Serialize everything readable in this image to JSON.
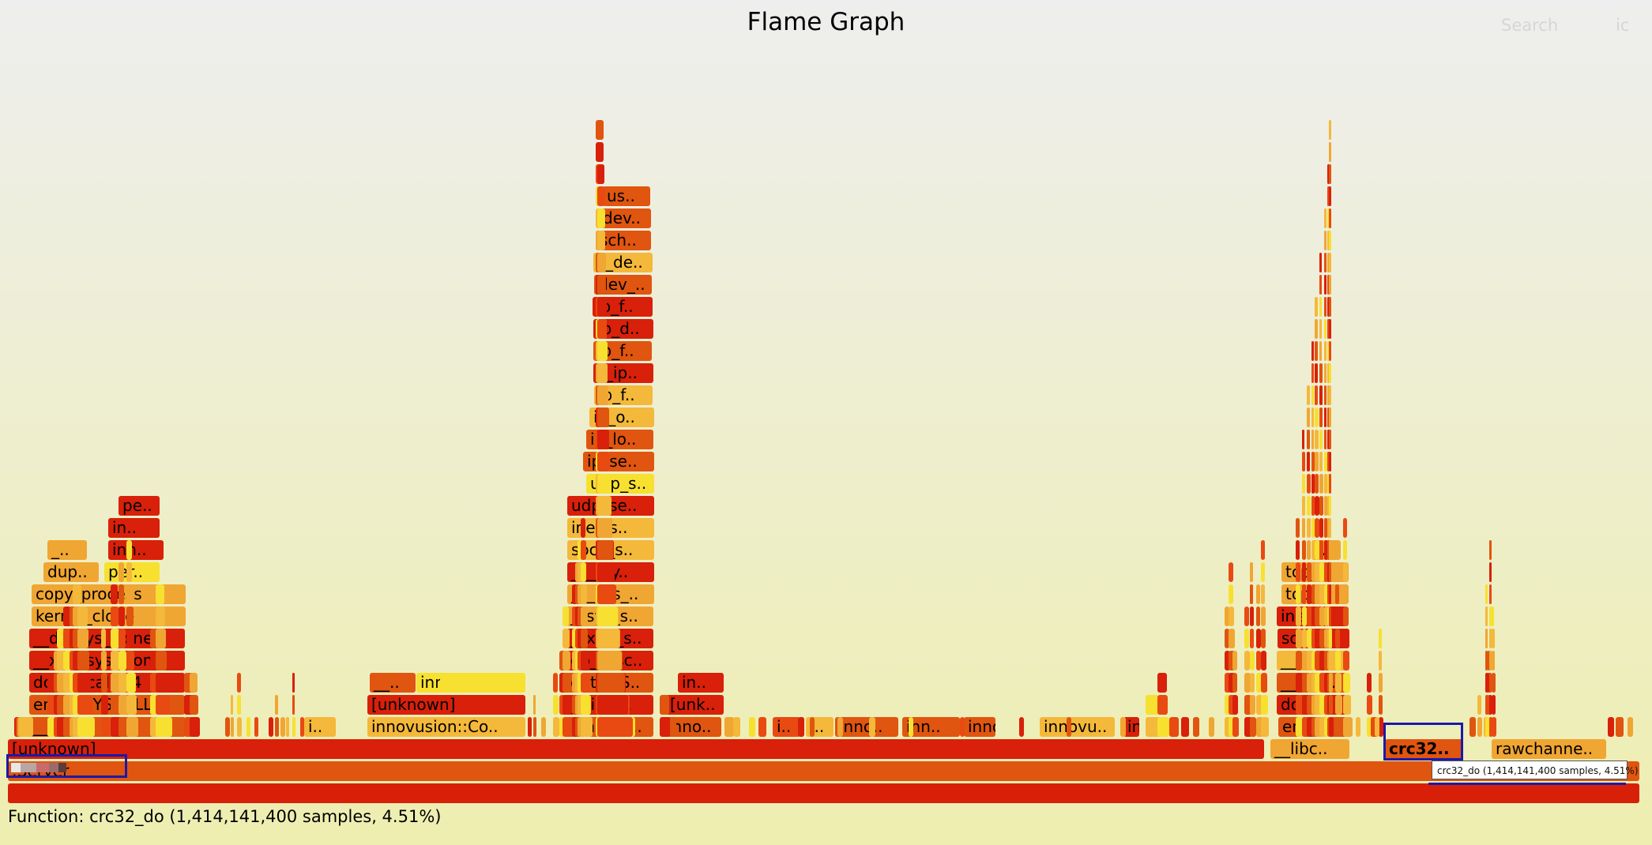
{
  "title": "Flame Graph",
  "controls": {
    "search_label": "Search",
    "ic_label": "ic"
  },
  "details": "Function: crc32_do (1,414,141,400 samples, 4.51%)",
  "tooltip": "crc32_do (1,414,141,400 samples, 4.51%)",
  "frames": [
    {
      "label": "",
      "color": "#d82009"
    },
    {
      "label": ":Server",
      "color": "#e0550f"
    },
    {
      "label": "[unknown]",
      "color": "#d8200a"
    },
    {
      "label": "__libc..",
      "color": "#f0a632"
    },
    {
      "label": "crc32..",
      "color": "#e0550f"
    },
    {
      "label": "rawchanne..",
      "color": "#f0a632"
    },
    {
      "label": "__clone",
      "color": "#e0550f"
    },
    {
      "label": "i..",
      "color": "#f4b83a"
    },
    {
      "label": "innovusion::Co..",
      "color": "#f4b83a"
    },
    {
      "label": "innovus..",
      "color": "#e0550f"
    },
    {
      "label": "inno..",
      "color": "#e0550f"
    },
    {
      "label": "i..",
      "color": "#e84a12"
    },
    {
      "label": "i..",
      "color": "#f4b83a"
    },
    {
      "label": "inno..",
      "color": "#e0550f"
    },
    {
      "label": "inn..",
      "color": "#e0550f"
    },
    {
      "label": "inno..",
      "color": "#e0550f"
    },
    {
      "label": "innovu..",
      "color": "#f4b83a"
    },
    {
      "label": "in..",
      "color": "#d8200a"
    },
    {
      "label": "entry..",
      "color": "#e0550f"
    },
    {
      "label": "entry_SYSCALL..",
      "color": "#e0550f"
    },
    {
      "label": "[unknown]",
      "color": "#d8200a"
    },
    {
      "label": "__libc_..",
      "color": "#d8200a"
    },
    {
      "label": "[unk..",
      "color": "#d8200a"
    },
    {
      "label": "do_sy..",
      "color": "#d8200a"
    },
    {
      "label": "do_syscall_64",
      "color": "#d8200a"
    },
    {
      "label": "__..",
      "color": "#e0550f"
    },
    {
      "label": "_..",
      "color": "#f7e030"
    },
    {
      "label": "innovu..",
      "color": "#f7e030"
    },
    {
      "label": "entry_S..",
      "color": "#e0550f"
    },
    {
      "label": "in..",
      "color": "#d8200a"
    },
    {
      "label": "__x64..",
      "color": "#e0550f"
    },
    {
      "label": "__x64_sys_clone",
      "color": "#d8200a"
    },
    {
      "label": "do_sysc..",
      "color": "#d8200a"
    },
    {
      "label": "__sys..",
      "color": "#f4b83a"
    },
    {
      "label": "__do_sys_clone",
      "color": "#d8200a"
    },
    {
      "label": "__x64_s..",
      "color": "#d8200a"
    },
    {
      "label": "sock..",
      "color": "#d8200a"
    },
    {
      "label": "kernel_clone",
      "color": "#f0a632"
    },
    {
      "label": "__sys_s..",
      "color": "#f0a632"
    },
    {
      "label": "inet..",
      "color": "#d8200a"
    },
    {
      "label": "copy_process",
      "color": "#f0a632"
    },
    {
      "label": "___sys_..",
      "color": "#f0a632"
    },
    {
      "label": "tcp_..",
      "color": "#f0a632"
    },
    {
      "label": "dup..",
      "color": "#f0a632"
    },
    {
      "label": "per..",
      "color": "#f7e030"
    },
    {
      "label": "____sy..",
      "color": "#d8200a"
    },
    {
      "label": "tcp_..",
      "color": "#f0a632"
    },
    {
      "label": "_..",
      "color": "#f0a632"
    },
    {
      "label": "inh..",
      "color": "#d8200a"
    },
    {
      "label": "sock_s..",
      "color": "#f4b83a"
    },
    {
      "label": "t..",
      "color": "#f0a632"
    },
    {
      "label": "in..",
      "color": "#d8200a"
    },
    {
      "label": "inet_s..",
      "color": "#f4b83a"
    },
    {
      "label": "pe..",
      "color": "#d8200a"
    },
    {
      "label": "udp_se..",
      "color": "#d8200a"
    },
    {
      "label": "udp_s..",
      "color": "#f7e030"
    },
    {
      "label": "ip_se..",
      "color": "#e0550f"
    },
    {
      "label": "ip_lo..",
      "color": "#e0550f"
    },
    {
      "label": "ip_o..",
      "color": "#f4b83a"
    },
    {
      "label": "ip_f..",
      "color": "#f4b83a"
    },
    {
      "label": "__ip..",
      "color": "#d8200a"
    },
    {
      "label": "ip_f..",
      "color": "#e0550f"
    },
    {
      "label": "ip_d..",
      "color": "#d8200a"
    },
    {
      "label": "ip_f..",
      "color": "#d8200a"
    },
    {
      "label": "dev_..",
      "color": "#e0550f"
    },
    {
      "label": "__de..",
      "color": "#f4b83a"
    },
    {
      "label": "sch..",
      "color": "#e0550f"
    },
    {
      "label": "dev..",
      "color": "#e0550f"
    },
    {
      "label": "us..",
      "color": "#e0550f"
    },
    {
      "label": "__..",
      "color": "#e0550f"
    }
  ]
}
